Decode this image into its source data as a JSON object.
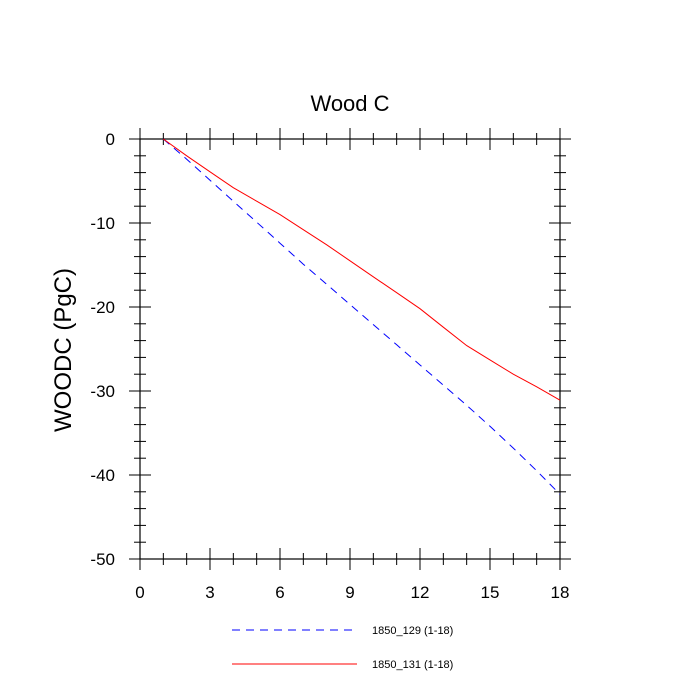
{
  "chart_data": {
    "type": "line",
    "title": "Wood C",
    "xlabel": "",
    "ylabel": "WOODC  (PgC)",
    "xlim": [
      0,
      18
    ],
    "ylim": [
      -50,
      0
    ],
    "xticks": [
      0,
      3,
      6,
      9,
      12,
      15,
      18
    ],
    "yticks": [
      0,
      -10,
      -20,
      -30,
      -40,
      -50
    ],
    "xtick_labels": [
      "0",
      "3",
      "6",
      "9",
      "12",
      "15",
      "18"
    ],
    "ytick_labels": [
      "0",
      "-10",
      "-20",
      "-30",
      "-40",
      "-50"
    ],
    "grid": false,
    "legend_position": "bottom",
    "series": [
      {
        "name": "1850_129 (1-18)",
        "color": "#0000ff",
        "dash": "dashed",
        "x": [
          1,
          2,
          3,
          4,
          5,
          6,
          7,
          8,
          9,
          10,
          11,
          12,
          13,
          14,
          15,
          16,
          17,
          18
        ],
        "y": [
          0,
          -2.4,
          -4.9,
          -7.4,
          -9.9,
          -12.4,
          -14.9,
          -17.3,
          -19.7,
          -22.1,
          -24.5,
          -26.9,
          -29.3,
          -31.7,
          -34.2,
          -36.8,
          -39.5,
          -42.3
        ]
      },
      {
        "name": "1850_131 (1-18)",
        "color": "#ff0000",
        "dash": "solid",
        "x": [
          1,
          2,
          3,
          4,
          5,
          6,
          7,
          8,
          9,
          10,
          11,
          12,
          13,
          14,
          15,
          16,
          17,
          18
        ],
        "y": [
          0,
          -2.0,
          -3.9,
          -5.8,
          -7.4,
          -9.0,
          -10.8,
          -12.6,
          -14.5,
          -16.4,
          -18.3,
          -20.2,
          -22.4,
          -24.6,
          -26.3,
          -28.0,
          -29.5,
          -31.1
        ]
      }
    ]
  }
}
